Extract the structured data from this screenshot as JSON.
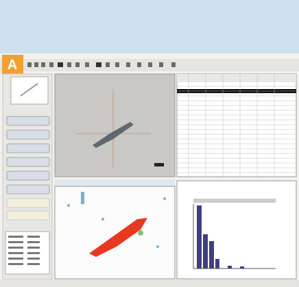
{
  "panel_label": "A"
}
